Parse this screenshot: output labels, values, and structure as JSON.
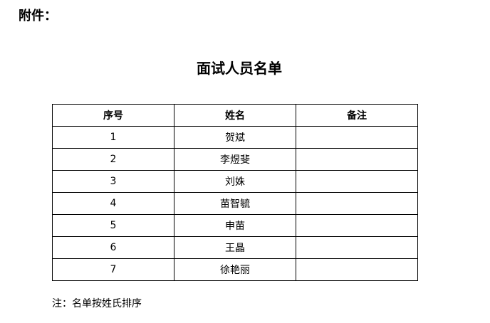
{
  "attachment_label": "附件：",
  "title": "面试人员名单",
  "table": {
    "headers": [
      "序号",
      "姓名",
      "备注"
    ],
    "rows": [
      [
        "1",
        "贺斌",
        ""
      ],
      [
        "2",
        "李煜斐",
        ""
      ],
      [
        "3",
        "刘姝",
        ""
      ],
      [
        "4",
        "苗智毓",
        ""
      ],
      [
        "5",
        "申苗",
        ""
      ],
      [
        "6",
        "王晶",
        ""
      ],
      [
        "7",
        "徐艳丽",
        ""
      ]
    ]
  },
  "note": "注：名单按姓氏排序"
}
